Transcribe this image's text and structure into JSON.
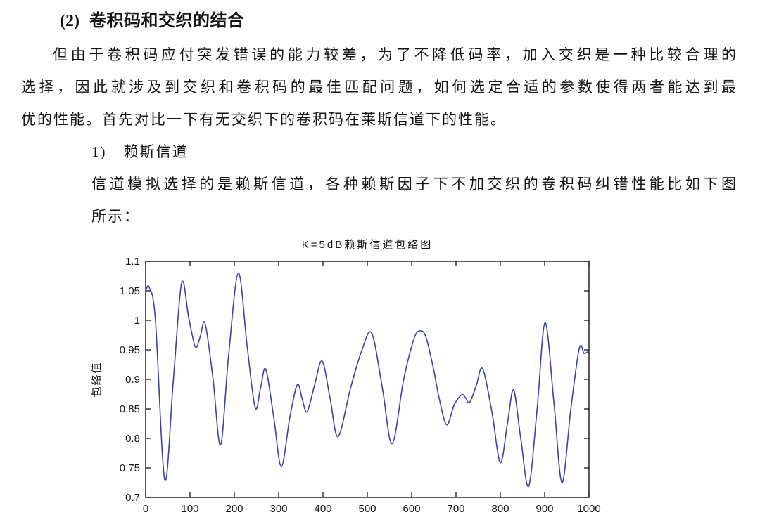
{
  "document": {
    "heading_number": "(2)",
    "heading_text": "卷积码和交织的结合",
    "p1_lines": [
      "但由于卷积码应付突发错误的能力较差，为了不降低码率，加入交织是一种比较合理的",
      "选择，因此就涉及到交织和卷积码的最佳匹配问题，如何选定合适的参数使得两者能达到最",
      "优的性能。首先对比一下有无交织下的卷积码在莱斯信道下的性能。"
    ],
    "list_item": {
      "marker": "1)",
      "text": "赖斯信道"
    },
    "p2_lines": [
      "信道模拟选择的是赖斯信道，各种赖斯因子下不加交织的卷积码纠错性能比如下图",
      "所示："
    ]
  },
  "chart_data": {
    "type": "line",
    "title": "K=5dB赖斯信道包络图",
    "xlabel": "",
    "ylabel": "包络值",
    "xlim": [
      0,
      1000
    ],
    "ylim": [
      0.7,
      1.1
    ],
    "x_ticks": [
      0,
      100,
      200,
      300,
      400,
      500,
      600,
      700,
      800,
      900,
      1000
    ],
    "y_tick_labels": [
      "0.7",
      "0.75",
      "0.8",
      "0.85",
      "0.9",
      "0.95",
      "1",
      "1.05",
      "1.1"
    ],
    "grid": false,
    "legend": "none",
    "line_color": "#4040A8",
    "axis_color": "#000000",
    "series": [
      {
        "name": "K=5dB envelope",
        "points": [
          [
            0,
            1.05
          ],
          [
            8,
            1.056
          ],
          [
            22,
            1.0
          ],
          [
            43,
            0.73
          ],
          [
            62,
            0.895
          ],
          [
            81,
            1.063
          ],
          [
            97,
            1.005
          ],
          [
            112,
            0.955
          ],
          [
            123,
            0.972
          ],
          [
            134,
            0.995
          ],
          [
            152,
            0.9
          ],
          [
            169,
            0.789
          ],
          [
            187,
            0.94
          ],
          [
            209,
            1.08
          ],
          [
            229,
            0.955
          ],
          [
            247,
            0.852
          ],
          [
            259,
            0.885
          ],
          [
            271,
            0.917
          ],
          [
            289,
            0.835
          ],
          [
            306,
            0.752
          ],
          [
            325,
            0.835
          ],
          [
            342,
            0.891
          ],
          [
            353,
            0.867
          ],
          [
            364,
            0.845
          ],
          [
            381,
            0.89
          ],
          [
            398,
            0.931
          ],
          [
            416,
            0.868
          ],
          [
            434,
            0.803
          ],
          [
            462,
            0.885
          ],
          [
            488,
            0.95
          ],
          [
            510,
            0.978
          ],
          [
            534,
            0.885
          ],
          [
            556,
            0.791
          ],
          [
            582,
            0.9
          ],
          [
            605,
            0.968
          ],
          [
            618,
            0.982
          ],
          [
            632,
            0.972
          ],
          [
            650,
            0.915
          ],
          [
            662,
            0.868
          ],
          [
            679,
            0.823
          ],
          [
            696,
            0.857
          ],
          [
            713,
            0.874
          ],
          [
            722,
            0.868
          ],
          [
            731,
            0.861
          ],
          [
            746,
            0.89
          ],
          [
            760,
            0.918
          ],
          [
            781,
            0.845
          ],
          [
            800,
            0.759
          ],
          [
            816,
            0.825
          ],
          [
            830,
            0.882
          ],
          [
            846,
            0.8
          ],
          [
            864,
            0.719
          ],
          [
            883,
            0.85
          ],
          [
            901,
            0.996
          ],
          [
            921,
            0.86
          ],
          [
            939,
            0.725
          ],
          [
            959,
            0.85
          ],
          [
            978,
            0.952
          ],
          [
            989,
            0.944
          ],
          [
            1000,
            0.948
          ]
        ]
      }
    ]
  }
}
